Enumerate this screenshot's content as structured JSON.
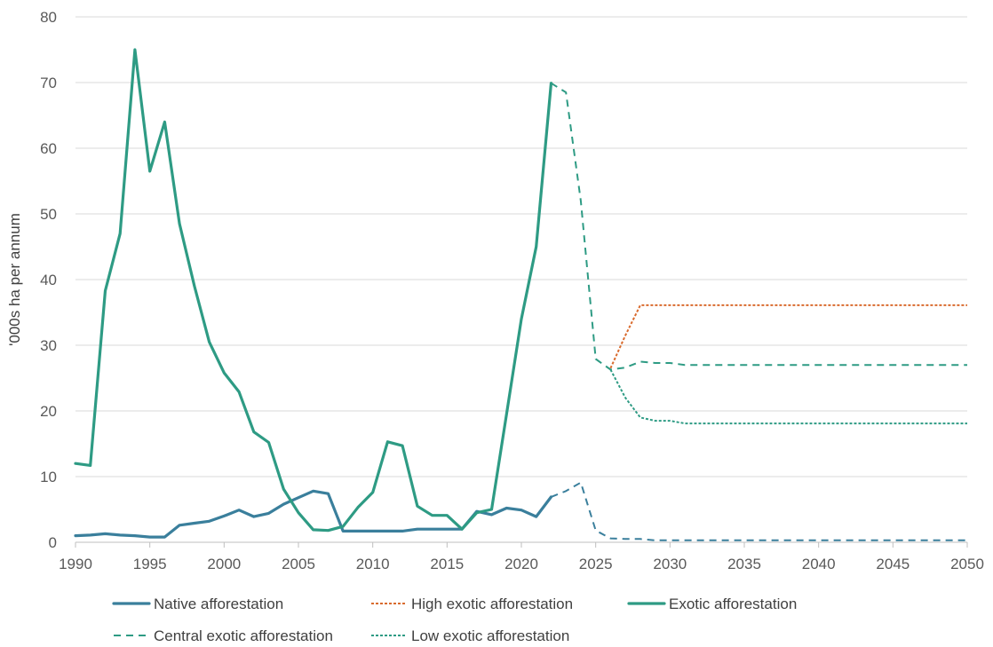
{
  "chart_data": {
    "type": "line",
    "title": "",
    "xlabel": "",
    "ylabel": "'000s ha per annum",
    "xlim": [
      1990,
      2050
    ],
    "ylim": [
      0,
      80
    ],
    "x_ticks": [
      "1990",
      "1995",
      "2000",
      "2005",
      "2010",
      "2015",
      "2020",
      "2025",
      "2030",
      "2035",
      "2040",
      "2045",
      "2050"
    ],
    "y_ticks": [
      "0",
      "10",
      "20",
      "30",
      "40",
      "50",
      "60",
      "70",
      "80"
    ],
    "grid": "horizontal",
    "legend_position": "bottom",
    "series": [
      {
        "name": "Native afforestation",
        "color": "#3a7f9c",
        "style": "solid",
        "x": [
          1990,
          1991,
          1992,
          1993,
          1994,
          1995,
          1996,
          1997,
          1998,
          1999,
          2000,
          2001,
          2002,
          2003,
          2004,
          2005,
          2006,
          2007,
          2008,
          2009,
          2010,
          2011,
          2012,
          2013,
          2014,
          2015,
          2016,
          2017,
          2018,
          2019,
          2020,
          2021,
          2022
        ],
        "y": [
          1.0,
          1.1,
          1.3,
          1.1,
          1.0,
          0.8,
          0.8,
          2.6,
          2.9,
          3.2,
          4.0,
          4.9,
          3.9,
          4.4,
          5.8,
          6.8,
          7.8,
          7.4,
          1.7,
          1.7,
          1.7,
          1.7,
          1.7,
          2.0,
          2.0,
          2.0,
          2.0,
          4.7,
          4.2,
          5.2,
          4.9,
          3.9,
          6.9
        ]
      },
      {
        "name": "High exotic afforestation",
        "color": "#d96b2e",
        "style": "dotted",
        "x": [
          2026,
          2027,
          2028,
          2029,
          2030,
          2031,
          2035,
          2040,
          2045,
          2050
        ],
        "y": [
          26.5,
          31.5,
          36.1,
          36.1,
          36.1,
          36.1,
          36.1,
          36.1,
          36.1,
          36.1
        ]
      },
      {
        "name": "Exotic afforestation",
        "color": "#2e9b84",
        "style": "solid",
        "x": [
          1990,
          1991,
          1992,
          1993,
          1994,
          1995,
          1996,
          1997,
          1998,
          1999,
          2000,
          2001,
          2002,
          2003,
          2004,
          2005,
          2006,
          2007,
          2008,
          2009,
          2010,
          2011,
          2012,
          2013,
          2014,
          2015,
          2016,
          2017,
          2018,
          2019,
          2020,
          2021,
          2022
        ],
        "y": [
          12.0,
          11.7,
          38.3,
          47.0,
          75.0,
          56.5,
          64.0,
          48.5,
          39.0,
          30.5,
          25.8,
          22.9,
          16.8,
          15.2,
          8.1,
          4.5,
          1.9,
          1.8,
          2.4,
          5.3,
          7.6,
          15.3,
          14.7,
          5.5,
          4.1,
          4.1,
          2.0,
          4.5,
          5.0,
          19.5,
          34.0,
          45.0,
          69.9
        ]
      },
      {
        "name": "Central exotic afforestation",
        "color": "#2e9b84",
        "style": "dashed",
        "x": [
          2022,
          2023,
          2024,
          2025,
          2026,
          2027,
          2028,
          2029,
          2030,
          2031,
          2035,
          2040,
          2045,
          2050
        ],
        "y": [
          69.9,
          68.5,
          52.0,
          27.9,
          26.3,
          26.6,
          27.5,
          27.3,
          27.3,
          27.0,
          27.0,
          27.0,
          27.0,
          27.0
        ]
      },
      {
        "name": "Low exotic afforestation",
        "color": "#2e9b84",
        "style": "dotted",
        "x": [
          2026,
          2027,
          2028,
          2029,
          2030,
          2031,
          2035,
          2040,
          2045,
          2050
        ],
        "y": [
          26.3,
          22.0,
          19.0,
          18.5,
          18.5,
          18.1,
          18.1,
          18.1,
          18.1,
          18.1
        ]
      },
      {
        "name": "Native afforestation (projection)",
        "legend": false,
        "color": "#3a7f9c",
        "style": "dashed",
        "x": [
          2022,
          2023,
          2024,
          2025,
          2026,
          2027,
          2028,
          2029,
          2030,
          2035,
          2040,
          2045,
          2050
        ],
        "y": [
          6.9,
          7.8,
          9.1,
          1.8,
          0.6,
          0.5,
          0.5,
          0.3,
          0.3,
          0.3,
          0.3,
          0.3,
          0.3
        ]
      }
    ],
    "legend": [
      {
        "label": "Native afforestation",
        "series": 0
      },
      {
        "label": "High exotic afforestation",
        "series": 1
      },
      {
        "label": "Exotic afforestation",
        "series": 2
      },
      {
        "label": "Central exotic afforestation",
        "series": 3
      },
      {
        "label": "Low exotic afforestation",
        "series": 4
      }
    ]
  }
}
